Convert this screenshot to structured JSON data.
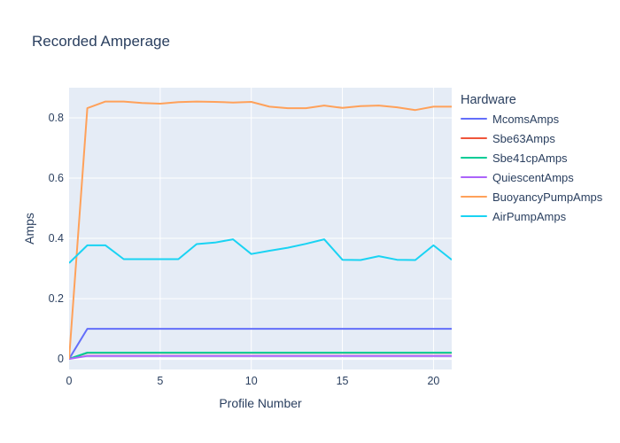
{
  "title": "Recorded Amperage",
  "colors": {
    "text": "#2a3f5f",
    "paper_bg": "#ffffff",
    "plot_bg": "#e5ecf6",
    "grid": "#ffffff"
  },
  "chart_data": {
    "type": "line",
    "title": "Recorded Amperage",
    "xlabel": "Profile Number",
    "ylabel": "Amps",
    "legend_title": "Hardware",
    "legend_position": "right",
    "grid": true,
    "xlim": [
      0,
      21
    ],
    "ylim": [
      -0.035,
      0.9
    ],
    "x_ticks": [
      0,
      5,
      10,
      15,
      20
    ],
    "y_ticks": [
      0,
      0.2,
      0.4,
      0.6,
      0.8
    ],
    "x": [
      0,
      1,
      2,
      3,
      4,
      5,
      6,
      7,
      8,
      9,
      10,
      11,
      12,
      13,
      14,
      15,
      16,
      17,
      18,
      19,
      20,
      21
    ],
    "series": [
      {
        "name": "McomsAmps",
        "color": "#636EFA",
        "values": [
          0,
          0.1,
          0.1,
          0.1,
          0.1,
          0.1,
          0.1,
          0.1,
          0.1,
          0.1,
          0.1,
          0.1,
          0.1,
          0.1,
          0.1,
          0.1,
          0.1,
          0.1,
          0.1,
          0.1,
          0.1,
          0.1
        ]
      },
      {
        "name": "Sbe63Amps",
        "color": "#EF553B",
        "values": [
          0,
          0.02,
          0.02,
          0.02,
          0.02,
          0.02,
          0.02,
          0.02,
          0.02,
          0.02,
          0.02,
          0.02,
          0.02,
          0.02,
          0.02,
          0.02,
          0.02,
          0.02,
          0.02,
          0.02,
          0.02,
          0.02
        ]
      },
      {
        "name": "Sbe41cpAmps",
        "color": "#00CC96",
        "values": [
          0,
          0.021,
          0.021,
          0.021,
          0.021,
          0.021,
          0.021,
          0.021,
          0.021,
          0.021,
          0.021,
          0.021,
          0.021,
          0.021,
          0.021,
          0.021,
          0.021,
          0.021,
          0.021,
          0.021,
          0.021,
          0.021
        ]
      },
      {
        "name": "QuiescentAmps",
        "color": "#AB63FA",
        "values": [
          0,
          0.01,
          0.01,
          0.01,
          0.01,
          0.01,
          0.01,
          0.01,
          0.01,
          0.01,
          0.01,
          0.01,
          0.01,
          0.01,
          0.01,
          0.01,
          0.01,
          0.01,
          0.01,
          0.01,
          0.01,
          0.01
        ]
      },
      {
        "name": "BuoyancyPumpAmps",
        "color": "#FFA15A",
        "values": [
          0,
          0.832,
          0.854,
          0.854,
          0.849,
          0.847,
          0.852,
          0.854,
          0.853,
          0.851,
          0.853,
          0.837,
          0.832,
          0.832,
          0.841,
          0.833,
          0.839,
          0.841,
          0.835,
          0.826,
          0.837,
          0.837
        ]
      },
      {
        "name": "AirPumpAmps",
        "color": "#19D3F3",
        "values": [
          0.318,
          0.377,
          0.377,
          0.331,
          0.331,
          0.331,
          0.331,
          0.381,
          0.386,
          0.397,
          0.348,
          0.359,
          0.369,
          0.382,
          0.397,
          0.329,
          0.328,
          0.341,
          0.329,
          0.328,
          0.377,
          0.329
        ]
      }
    ]
  }
}
